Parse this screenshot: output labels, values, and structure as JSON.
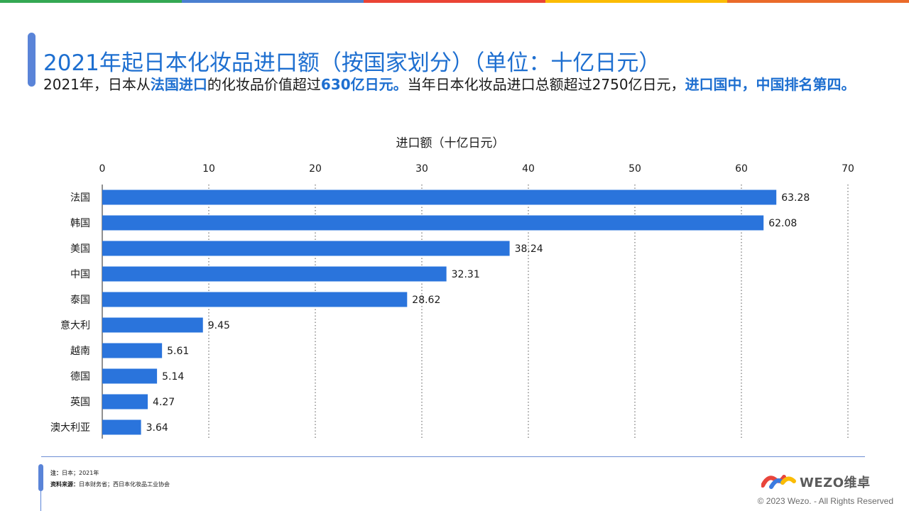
{
  "top_bar_colors": [
    "#34a853",
    "#4a7fd0",
    "#ea4335",
    "#fbbc05",
    "#ea6a2a"
  ],
  "title": "2021年起日本化妆品进口额（按国家划分）（单位：十亿日元）",
  "subtitle": {
    "p1": "2021年，日本从",
    "p2": "法国进口",
    "p3": "的化妆品价值超过",
    "p4": "630亿日元。",
    "p5": "当年日本化妆品进口总额超过2750亿日元，",
    "p6": "进口国中，中国排名第四。"
  },
  "chart_data": {
    "type": "bar",
    "orientation": "horizontal",
    "title": "进口额（十亿日元）",
    "categories": [
      "法国",
      "韩国",
      "美国",
      "中国",
      "泰国",
      "意大利",
      "越南",
      "德国",
      "英国",
      "澳大利亚"
    ],
    "values": [
      63.28,
      62.08,
      38.24,
      32.31,
      28.62,
      9.45,
      5.61,
      5.14,
      4.27,
      3.64
    ],
    "value_labels": [
      "63.28",
      "62.08",
      "38.24",
      "32.31",
      "28.62",
      "9.45",
      "5.61",
      "5.14",
      "4.27",
      "3.64"
    ],
    "xlim": [
      0,
      70
    ],
    "xticks": [
      0,
      10,
      20,
      30,
      40,
      50,
      60,
      70
    ],
    "axis_position": "top",
    "grid": "dotted vertical",
    "bar_color": "#2a74dc"
  },
  "footer": {
    "note_label": "注：",
    "note_text": "日本；2021年",
    "source_label": "资料来源：",
    "source_text": "日本财务省；西日本化妆品工业协会"
  },
  "logo": {
    "text": "WEZO维卓",
    "colors": [
      "#e8453c",
      "#3b7be0",
      "#34a853",
      "#fbbc05"
    ]
  },
  "copyright": "© 2023 Wezo. - All Rights Reserved"
}
